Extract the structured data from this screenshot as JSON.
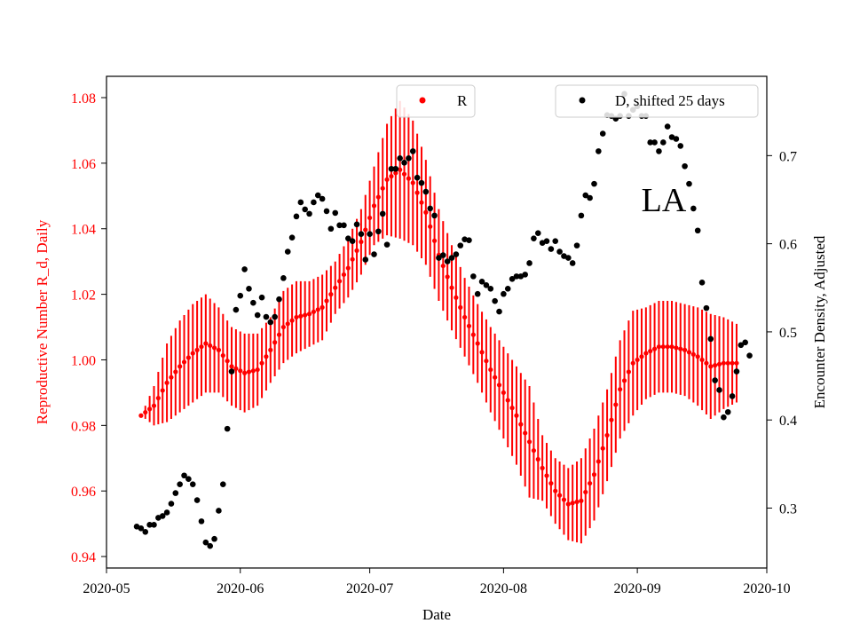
{
  "chart_data": {
    "type": "line",
    "title": "",
    "annotation": "LA",
    "xlabel": "Date",
    "ylabel_left": "Reproductive Number R_d, Daily",
    "ylabel_right": "Encounter Density, Adjusted",
    "x_range": [
      "2020-05-01",
      "2020-10-01"
    ],
    "ylim_left": [
      0.9365,
      1.0865
    ],
    "ylim_right": [
      0.232,
      0.79
    ],
    "x_ticks": [
      "2020-05",
      "2020-06",
      "2020-07",
      "2020-08",
      "2020-09",
      "2020-10"
    ],
    "y_ticks_left": [
      "0.94",
      "0.96",
      "0.98",
      "1.00",
      "1.02",
      "1.04",
      "1.06",
      "1.08"
    ],
    "y_ticks_right": [
      "0.3",
      "0.4",
      "0.5",
      "0.6",
      "0.7"
    ],
    "colors": {
      "r_series": "#ff0000",
      "d_series": "#000000",
      "left_axis_text": "#ff0000"
    },
    "legend": [
      {
        "label": "R",
        "color": "#ff0000",
        "position": "top-center"
      },
      {
        "label": "D, shifted 25 days",
        "color": "#000000",
        "position": "top-right"
      }
    ],
    "series": [
      {
        "name": "R",
        "axis": "left",
        "start_date": "2020-05-09",
        "step_days": 1,
        "knots": [
          [
            0,
            0.983,
            0.0
          ],
          [
            3,
            0.986,
            0.006
          ],
          [
            6,
            0.993,
            0.012
          ],
          [
            9,
            0.998,
            0.014
          ],
          [
            12,
            1.002,
            0.015
          ],
          [
            15,
            1.005,
            0.015
          ],
          [
            18,
            1.003,
            0.013
          ],
          [
            21,
            0.998,
            0.012
          ],
          [
            24,
            0.996,
            0.012
          ],
          [
            27,
            0.997,
            0.011
          ],
          [
            30,
            1.003,
            0.01
          ],
          [
            33,
            1.01,
            0.011
          ],
          [
            36,
            1.013,
            0.011
          ],
          [
            39,
            1.014,
            0.01
          ],
          [
            42,
            1.016,
            0.01
          ],
          [
            45,
            1.022,
            0.008
          ],
          [
            48,
            1.028,
            0.009
          ],
          [
            51,
            1.036,
            0.01
          ],
          [
            54,
            1.047,
            0.012
          ],
          [
            57,
            1.055,
            0.017
          ],
          [
            60,
            1.058,
            0.021
          ],
          [
            63,
            1.054,
            0.019
          ],
          [
            66,
            1.045,
            0.016
          ],
          [
            69,
            1.032,
            0.014
          ],
          [
            72,
            1.022,
            0.013
          ],
          [
            75,
            1.013,
            0.012
          ],
          [
            78,
            1.005,
            0.012
          ],
          [
            81,
            0.997,
            0.013
          ],
          [
            84,
            0.99,
            0.014
          ],
          [
            87,
            0.983,
            0.015
          ],
          [
            90,
            0.975,
            0.017
          ],
          [
            93,
            0.967,
            0.01
          ],
          [
            96,
            0.96,
            0.01
          ],
          [
            99,
            0.956,
            0.011
          ],
          [
            102,
            0.957,
            0.013
          ],
          [
            105,
            0.965,
            0.014
          ],
          [
            108,
            0.977,
            0.014
          ],
          [
            111,
            0.991,
            0.015
          ],
          [
            114,
            0.999,
            0.016
          ],
          [
            117,
            1.002,
            0.014
          ],
          [
            120,
            1.004,
            0.014
          ],
          [
            123,
            1.004,
            0.014
          ],
          [
            126,
            1.003,
            0.014
          ],
          [
            129,
            1.001,
            0.015
          ],
          [
            132,
            0.998,
            0.016
          ],
          [
            135,
            0.999,
            0.014
          ],
          [
            138,
            0.999,
            0.012
          ]
        ]
      },
      {
        "name": "D, shifted 25 days",
        "axis": "right",
        "points": [
          [
            "2020-05-08",
            0.279
          ],
          [
            "2020-05-09",
            0.277
          ],
          [
            "2020-05-10",
            0.273
          ],
          [
            "2020-05-11",
            0.281
          ],
          [
            "2020-05-12",
            0.281
          ],
          [
            "2020-05-13",
            0.289
          ],
          [
            "2020-05-14",
            0.291
          ],
          [
            "2020-05-15",
            0.295
          ],
          [
            "2020-05-16",
            0.305
          ],
          [
            "2020-05-17",
            0.317
          ],
          [
            "2020-05-18",
            0.327
          ],
          [
            "2020-05-19",
            0.337
          ],
          [
            "2020-05-20",
            0.333
          ],
          [
            "2020-05-21",
            0.327
          ],
          [
            "2020-05-22",
            0.309
          ],
          [
            "2020-05-23",
            0.285
          ],
          [
            "2020-05-24",
            0.261
          ],
          [
            "2020-05-25",
            0.257
          ],
          [
            "2020-05-26",
            0.265
          ],
          [
            "2020-05-27",
            0.297
          ],
          [
            "2020-05-28",
            0.327
          ],
          [
            "2020-05-29",
            0.39
          ],
          [
            "2020-05-30",
            0.455
          ],
          [
            "2020-05-31",
            0.525
          ],
          [
            "2020-06-01",
            0.541
          ],
          [
            "2020-06-02",
            0.571
          ],
          [
            "2020-06-03",
            0.549
          ],
          [
            "2020-06-04",
            0.533
          ],
          [
            "2020-06-05",
            0.519
          ],
          [
            "2020-06-06",
            0.539
          ],
          [
            "2020-06-07",
            0.517
          ],
          [
            "2020-06-08",
            0.511
          ],
          [
            "2020-06-09",
            0.517
          ],
          [
            "2020-06-10",
            0.537
          ],
          [
            "2020-06-11",
            0.561
          ],
          [
            "2020-06-12",
            0.591
          ],
          [
            "2020-06-13",
            0.607
          ],
          [
            "2020-06-14",
            0.631
          ],
          [
            "2020-06-15",
            0.647
          ],
          [
            "2020-06-16",
            0.639
          ],
          [
            "2020-06-17",
            0.634
          ],
          [
            "2020-06-18",
            0.647
          ],
          [
            "2020-06-19",
            0.655
          ],
          [
            "2020-06-20",
            0.651
          ],
          [
            "2020-06-21",
            0.637
          ],
          [
            "2020-06-22",
            0.617
          ],
          [
            "2020-06-23",
            0.635
          ],
          [
            "2020-06-24",
            0.621
          ],
          [
            "2020-06-25",
            0.621
          ],
          [
            "2020-06-26",
            0.606
          ],
          [
            "2020-06-27",
            0.603
          ],
          [
            "2020-06-28",
            0.622
          ],
          [
            "2020-06-29",
            0.611
          ],
          [
            "2020-06-30",
            0.582
          ],
          [
            "2020-07-01",
            0.611
          ],
          [
            "2020-07-02",
            0.588
          ],
          [
            "2020-07-03",
            0.614
          ],
          [
            "2020-07-04",
            0.634
          ],
          [
            "2020-07-05",
            0.599
          ],
          [
            "2020-07-06",
            0.685
          ],
          [
            "2020-07-07",
            0.685
          ],
          [
            "2020-07-08",
            0.697
          ],
          [
            "2020-07-09",
            0.692
          ],
          [
            "2020-07-10",
            0.697
          ],
          [
            "2020-07-11",
            0.705
          ],
          [
            "2020-07-12",
            0.675
          ],
          [
            "2020-07-13",
            0.669
          ],
          [
            "2020-07-14",
            0.659
          ],
          [
            "2020-07-15",
            0.64
          ],
          [
            "2020-07-16",
            0.632
          ],
          [
            "2020-07-17",
            0.584
          ],
          [
            "2020-07-18",
            0.587
          ],
          [
            "2020-07-19",
            0.58
          ],
          [
            "2020-07-20",
            0.584
          ],
          [
            "2020-07-21",
            0.588
          ],
          [
            "2020-07-22",
            0.598
          ],
          [
            "2020-07-23",
            0.605
          ],
          [
            "2020-07-24",
            0.604
          ],
          [
            "2020-07-25",
            0.563
          ],
          [
            "2020-07-26",
            0.543
          ],
          [
            "2020-07-27",
            0.557
          ],
          [
            "2020-07-28",
            0.553
          ],
          [
            "2020-07-29",
            0.549
          ],
          [
            "2020-07-30",
            0.535
          ],
          [
            "2020-07-31",
            0.523
          ],
          [
            "2020-08-01",
            0.543
          ],
          [
            "2020-08-02",
            0.549
          ],
          [
            "2020-08-03",
            0.56
          ],
          [
            "2020-08-04",
            0.563
          ],
          [
            "2020-08-05",
            0.563
          ],
          [
            "2020-08-06",
            0.565
          ],
          [
            "2020-08-07",
            0.578
          ],
          [
            "2020-08-08",
            0.606
          ],
          [
            "2020-08-09",
            0.612
          ],
          [
            "2020-08-10",
            0.601
          ],
          [
            "2020-08-11",
            0.603
          ],
          [
            "2020-08-12",
            0.594
          ],
          [
            "2020-08-13",
            0.603
          ],
          [
            "2020-08-14",
            0.591
          ],
          [
            "2020-08-15",
            0.586
          ],
          [
            "2020-08-16",
            0.584
          ],
          [
            "2020-08-17",
            0.578
          ],
          [
            "2020-08-18",
            0.598
          ],
          [
            "2020-08-19",
            0.632
          ],
          [
            "2020-08-20",
            0.655
          ],
          [
            "2020-08-21",
            0.652
          ],
          [
            "2020-08-22",
            0.668
          ],
          [
            "2020-08-23",
            0.705
          ],
          [
            "2020-08-24",
            0.725
          ],
          [
            "2020-08-25",
            0.746
          ],
          [
            "2020-08-26",
            0.745
          ],
          [
            "2020-08-27",
            0.742
          ],
          [
            "2020-08-28",
            0.745
          ],
          [
            "2020-08-29",
            0.77
          ],
          [
            "2020-08-30",
            0.745
          ],
          [
            "2020-08-31",
            0.752
          ],
          [
            "2020-09-01",
            0.756
          ],
          [
            "2020-09-02",
            0.745
          ],
          [
            "2020-09-03",
            0.745
          ],
          [
            "2020-09-04",
            0.715
          ],
          [
            "2020-09-05",
            0.715
          ],
          [
            "2020-09-06",
            0.705
          ],
          [
            "2020-09-07",
            0.715
          ],
          [
            "2020-09-08",
            0.733
          ],
          [
            "2020-09-09",
            0.721
          ],
          [
            "2020-09-10",
            0.719
          ],
          [
            "2020-09-11",
            0.711
          ],
          [
            "2020-09-12",
            0.688
          ],
          [
            "2020-09-13",
            0.668
          ],
          [
            "2020-09-14",
            0.64
          ],
          [
            "2020-09-15",
            0.615
          ],
          [
            "2020-09-16",
            0.556
          ],
          [
            "2020-09-17",
            0.527
          ],
          [
            "2020-09-18",
            0.492
          ],
          [
            "2020-09-19",
            0.445
          ],
          [
            "2020-09-20",
            0.434
          ],
          [
            "2020-09-21",
            0.403
          ],
          [
            "2020-09-22",
            0.409
          ],
          [
            "2020-09-23",
            0.427
          ],
          [
            "2020-09-24",
            0.455
          ],
          [
            "2020-09-25",
            0.485
          ],
          [
            "2020-09-26",
            0.488
          ],
          [
            "2020-09-27",
            0.473
          ]
        ]
      }
    ]
  }
}
